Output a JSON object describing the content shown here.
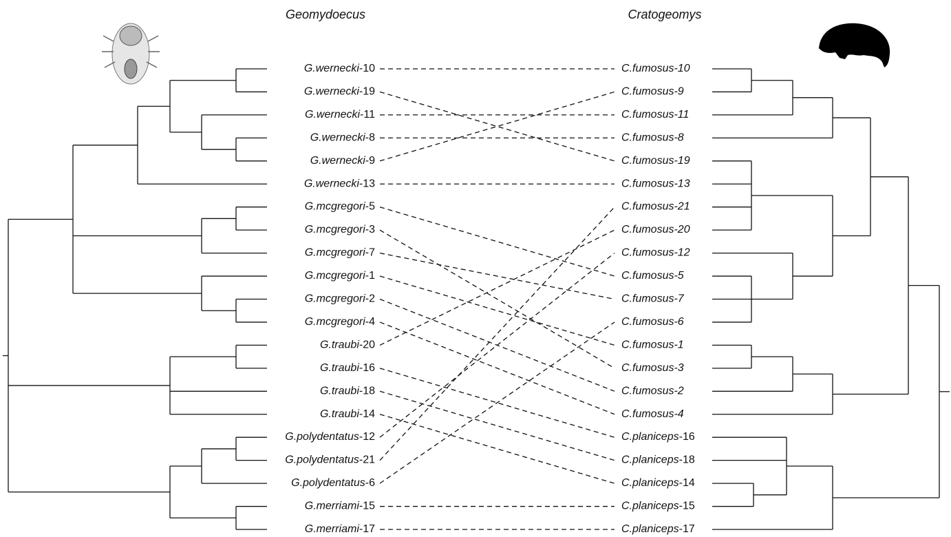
{
  "header": {
    "left_title": "Geomydoecus",
    "right_title": "Cratogeomys"
  },
  "left_taxa": [
    {
      "name": "G.wernecki",
      "id": "-10"
    },
    {
      "name": "G.wernecki",
      "id": "-19"
    },
    {
      "name": "G.wernecki",
      "id": "-11"
    },
    {
      "name": "G.wernecki",
      "id": "-8"
    },
    {
      "name": "G.wernecki",
      "id": "-9"
    },
    {
      "name": "G.wernecki",
      "id": "-13"
    },
    {
      "name": "G.mcgregori",
      "id": "-5"
    },
    {
      "name": "G.mcgregori",
      "id": "-3"
    },
    {
      "name": "G.mcgregori",
      "id": "-7"
    },
    {
      "name": "G.mcgregori",
      "id": "-1"
    },
    {
      "name": "G.mcgregori",
      "id": "-2"
    },
    {
      "name": "G.mcgregori",
      "id": "-4"
    },
    {
      "name": "G.traubi",
      "id": "-20"
    },
    {
      "name": "G.traubi",
      "id": "-16"
    },
    {
      "name": "G.traubi",
      "id": "-18"
    },
    {
      "name": "G.traubi",
      "id": "-14"
    },
    {
      "name": "G.polydentatus",
      "id": "-12"
    },
    {
      "name": "G.polydentatus",
      "id": "-21"
    },
    {
      "name": "G.polydentatus",
      "id": "-6"
    },
    {
      "name": "G.merriami",
      "id": "-15"
    },
    {
      "name": "G.merriami",
      "id": "-17"
    }
  ],
  "right_taxa": [
    {
      "label": "C.fumosus-10"
    },
    {
      "label": "C.fumosus-9"
    },
    {
      "label": "C.fumosus-11"
    },
    {
      "label": "C.fumosus-8"
    },
    {
      "label": "C.fumosus-19"
    },
    {
      "label": "C.fumosus-13"
    },
    {
      "label": "C.fumosus-21"
    },
    {
      "label": "C.fumosus-20"
    },
    {
      "label": "C.fumosus-12"
    },
    {
      "label": "C.fumosus-5"
    },
    {
      "label": "C.fumosus-7"
    },
    {
      "label": "C.fumosus-6"
    },
    {
      "label": "C.fumosus-1"
    },
    {
      "label": "C.fumosus-3"
    },
    {
      "label": "C.fumosus-2"
    },
    {
      "label": "C.fumosus-4"
    },
    {
      "name": "C.planiceps",
      "id": "-16"
    },
    {
      "name": "C.planiceps",
      "id": "-18"
    },
    {
      "name": "C.planiceps",
      "id": "-14"
    },
    {
      "name": "C.planiceps",
      "id": "-15"
    },
    {
      "name": "C.planiceps",
      "id": "-17"
    }
  ]
}
